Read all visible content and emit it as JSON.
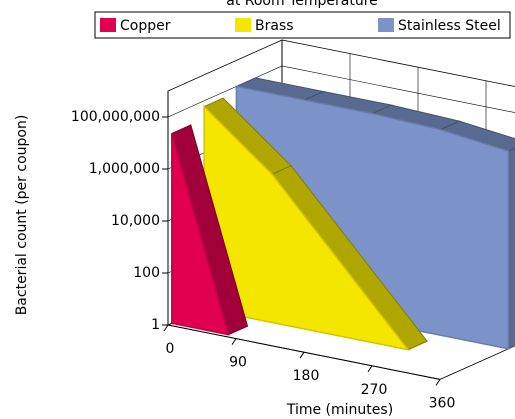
{
  "chart_data": {
    "type": "area3d",
    "title": "at Room Temperature",
    "x_label": "Time (minutes)",
    "y_label": "Bacterial count (per coupon)",
    "log_y": true,
    "legend": "top",
    "ylim": [
      1,
      1000000000
    ],
    "yticks": [
      1,
      100,
      {
        "value": 10000,
        "label": "10,000"
      },
      {
        "value": 1000000,
        "label": "1,000,000"
      },
      {
        "value": 100000000,
        "label": "100,000,000"
      }
    ],
    "xlim": [
      0,
      360
    ],
    "xticks": [
      0,
      90,
      180,
      270,
      360
    ],
    "series": [
      {
        "name": "Copper",
        "color": "#e0004f",
        "x": [
          0,
          75
        ],
        "values": [
          20000000,
          1
        ]
      },
      {
        "name": "Brass",
        "color": "#f5e600",
        "x": [
          0,
          90,
          270
        ],
        "values": [
          60000000,
          500000,
          1
        ]
      },
      {
        "name": "Stainless Steel",
        "color": "#7b93c9",
        "x": [
          0,
          90,
          180,
          270,
          360
        ],
        "values": [
          100000000,
          100000000,
          100000000,
          80000000,
          40000000
        ]
      }
    ]
  }
}
